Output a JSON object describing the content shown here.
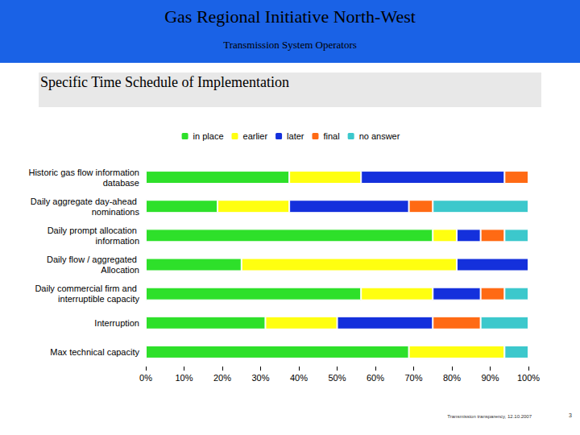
{
  "header": {
    "title": "Gas Regional Initiative North-West",
    "subtitle": "Transmission System Operators"
  },
  "section_title": "Specific Time Schedule of Implementation",
  "chart_data": {
    "type": "bar",
    "orientation": "horizontal",
    "stacked": true,
    "grid": false,
    "legend": "top",
    "categories": [
      "Historic gas flow information database",
      "Daily aggregate day-ahead nominations",
      "Daily prompt allocation information",
      "Daily flow / aggregated Allocation",
      "Daily commercial firm and interruptible capacity",
      "Interruption",
      "Max technical capacity"
    ],
    "series": [
      {
        "name": "in place",
        "color": "#2ee02a",
        "values": [
          37.5,
          18.75,
          75,
          25,
          56.25,
          31.25,
          68.75
        ]
      },
      {
        "name": "earlier",
        "color": "#ffff10",
        "values": [
          18.75,
          18.75,
          6.25,
          56.25,
          18.75,
          18.75,
          25
        ]
      },
      {
        "name": "later",
        "color": "#1430dc",
        "values": [
          37.5,
          31.25,
          6.25,
          18.75,
          12.5,
          25,
          0
        ]
      },
      {
        "name": "final",
        "color": "#ff6a14",
        "values": [
          6.25,
          6.25,
          6.25,
          0,
          6.25,
          12.5,
          0
        ]
      },
      {
        "name": "no answer",
        "color": "#3cc8cc",
        "values": [
          0,
          25,
          6.25,
          0,
          6.25,
          12.5,
          6.25
        ]
      }
    ],
    "xlim": [
      0,
      100
    ],
    "xticks": [
      {
        "value": 0,
        "label": "0%"
      },
      {
        "value": 10,
        "label": "10%"
      },
      {
        "value": 20,
        "label": "20%"
      },
      {
        "value": 30,
        "label": "30%"
      },
      {
        "value": 40,
        "label": "40%"
      },
      {
        "value": 50,
        "label": "50%"
      },
      {
        "value": 60,
        "label": "60%"
      },
      {
        "value": 70,
        "label": "70%"
      },
      {
        "value": 80,
        "label": "80%"
      },
      {
        "value": 90,
        "label": "90%"
      },
      {
        "value": 100,
        "label": "100%"
      }
    ]
  },
  "footer": {
    "text": "Transmission transparency, 12.10.2007",
    "page": "3"
  }
}
